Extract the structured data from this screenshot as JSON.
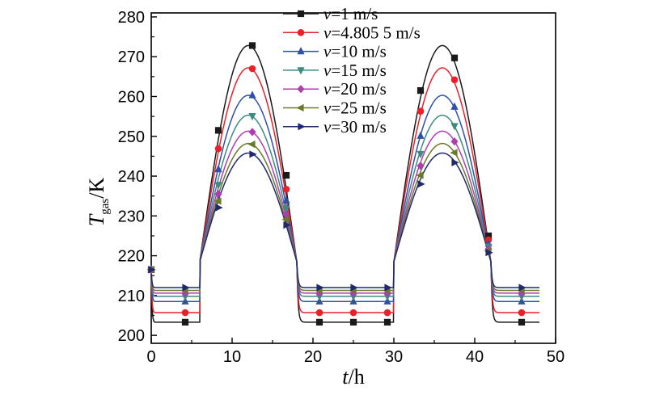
{
  "chart_data": {
    "type": "line",
    "title": "",
    "xlabel": {
      "main": "t",
      "unit": "/h"
    },
    "ylabel": {
      "main": "T",
      "sub": "gas",
      "unit": "/K"
    },
    "xlim": [
      0,
      50
    ],
    "ylim": [
      198,
      281
    ],
    "xticks": [
      0,
      10,
      20,
      30,
      40,
      50
    ],
    "yticks": [
      200,
      210,
      220,
      230,
      240,
      250,
      260,
      270,
      280
    ],
    "grid": false,
    "legend_position": "top-center",
    "start_value": 216.5,
    "series": [
      {
        "name": "v=1 m/s",
        "legend_prefix": "v",
        "legend_value": "=1 m/s",
        "color": "#1a1a1a",
        "marker": "square",
        "low": 203.3,
        "peak": 272.8,
        "markers": [
          [
            0,
            216.5
          ],
          [
            4.2,
            203.3
          ],
          [
            8.3,
            251.5
          ],
          [
            12.5,
            272.8
          ],
          [
            16.7,
            240.2
          ],
          [
            20.8,
            203.3
          ],
          [
            25,
            203.3
          ],
          [
            29.2,
            203.3
          ],
          [
            33.3,
            261.5
          ],
          [
            37.5,
            269.7
          ],
          [
            41.7,
            225.0
          ],
          [
            45.8,
            203.3
          ]
        ]
      },
      {
        "name": "v=4.805 5 m/s",
        "legend_prefix": "v",
        "legend_value": "=4.805 5 m/s",
        "color": "#e8212a",
        "marker": "circle",
        "low": 205.7,
        "peak": 267.2,
        "markers": [
          [
            0,
            216.5
          ],
          [
            4.2,
            205.7
          ],
          [
            8.3,
            246.9
          ],
          [
            12.5,
            267.0
          ],
          [
            16.7,
            236.7
          ],
          [
            20.8,
            205.7
          ],
          [
            25,
            205.7
          ],
          [
            29.2,
            205.7
          ],
          [
            33.3,
            256.3
          ],
          [
            37.5,
            264.2
          ],
          [
            41.7,
            224.0
          ],
          [
            45.8,
            205.7
          ]
        ]
      },
      {
        "name": "v=10 m/s",
        "legend_prefix": "v",
        "legend_value": "=10 m/s",
        "color": "#2e50a8",
        "marker": "triangle-up",
        "low": 208.5,
        "peak": 260.3,
        "markers": [
          [
            0,
            216.5
          ],
          [
            4.2,
            208.5
          ],
          [
            8.3,
            241.7
          ],
          [
            12.5,
            260.3
          ],
          [
            16.7,
            233.9
          ],
          [
            20.8,
            208.5
          ],
          [
            25,
            208.5
          ],
          [
            29.2,
            208.5
          ],
          [
            33.3,
            250.1
          ],
          [
            37.5,
            257.4
          ],
          [
            41.7,
            223.0
          ],
          [
            45.8,
            208.5
          ]
        ]
      },
      {
        "name": "v=15 m/s",
        "legend_prefix": "v",
        "legend_value": "=15 m/s",
        "color": "#3f8a80",
        "marker": "triangle-down",
        "low": 209.8,
        "peak": 255.3,
        "markers": [
          [
            0,
            216.5
          ],
          [
            4.2,
            209.8
          ],
          [
            8.3,
            237.8
          ],
          [
            12.5,
            255.1
          ],
          [
            16.7,
            231.9
          ],
          [
            20.8,
            209.8
          ],
          [
            25,
            209.8
          ],
          [
            29.2,
            209.8
          ],
          [
            33.3,
            245.6
          ],
          [
            37.5,
            252.6
          ],
          [
            41.7,
            222.3
          ],
          [
            45.8,
            209.8
          ]
        ]
      },
      {
        "name": "v=20 m/s",
        "legend_prefix": "v",
        "legend_value": "=20 m/s",
        "color": "#b03db0",
        "marker": "diamond",
        "low": 210.6,
        "peak": 251.3,
        "markers": [
          [
            0,
            216.5
          ],
          [
            4.2,
            210.6
          ],
          [
            8.3,
            235.5
          ],
          [
            12.5,
            251.1
          ],
          [
            16.7,
            230.3
          ],
          [
            20.8,
            210.6
          ],
          [
            25,
            210.6
          ],
          [
            29.2,
            210.6
          ],
          [
            33.3,
            242.6
          ],
          [
            37.5,
            248.7
          ],
          [
            41.7,
            221.7
          ],
          [
            45.8,
            210.6
          ]
        ]
      },
      {
        "name": "v=25 m/s",
        "legend_prefix": "v",
        "legend_value": "=25 m/s",
        "color": "#6b7a2a",
        "marker": "triangle-left",
        "low": 211.3,
        "peak": 248.2,
        "markers": [
          [
            0,
            216.5
          ],
          [
            4.2,
            211.3
          ],
          [
            8.3,
            233.7
          ],
          [
            12.5,
            248.0
          ],
          [
            16.7,
            229.1
          ],
          [
            20.8,
            211.3
          ],
          [
            25,
            211.3
          ],
          [
            29.2,
            211.3
          ],
          [
            33.3,
            240.2
          ],
          [
            37.5,
            245.9
          ],
          [
            41.7,
            221.2
          ],
          [
            45.8,
            211.3
          ]
        ]
      },
      {
        "name": "v=30 m/s",
        "legend_prefix": "v",
        "legend_value": "=30 m/s",
        "color": "#1f2a6b",
        "marker": "triangle-right",
        "low": 212.0,
        "peak": 245.8,
        "markers": [
          [
            0,
            216.5
          ],
          [
            4.2,
            212.0
          ],
          [
            8.3,
            232.1
          ],
          [
            12.5,
            245.5
          ],
          [
            16.7,
            227.7
          ],
          [
            20.8,
            212.0
          ],
          [
            25,
            212.0
          ],
          [
            29.2,
            212.0
          ],
          [
            33.3,
            238.0
          ],
          [
            37.5,
            243.4
          ],
          [
            41.7,
            220.8
          ],
          [
            45.8,
            212.0
          ]
        ]
      }
    ]
  }
}
